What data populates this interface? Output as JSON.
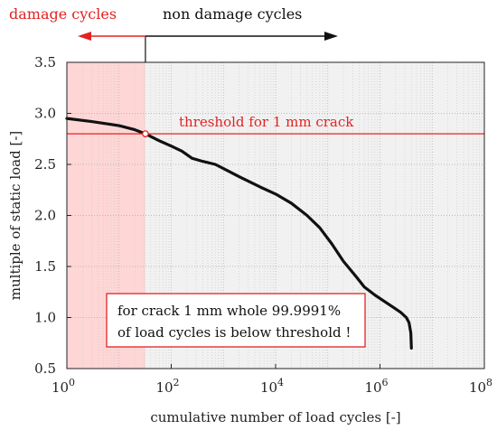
{
  "chart_data": {
    "type": "line",
    "title": "",
    "xlabel": "cumulative number of load cycles [-]",
    "ylabel": "multiple of static load [-]",
    "x_scale": "log",
    "xlim": [
      1,
      100000000
    ],
    "ylim": [
      0.5,
      3.5
    ],
    "x_ticks": [
      {
        "value": 1,
        "base": "10",
        "exp": "0"
      },
      {
        "value": 100,
        "base": "10",
        "exp": "2"
      },
      {
        "value": 10000,
        "base": "10",
        "exp": "4"
      },
      {
        "value": 1000000,
        "base": "10",
        "exp": "6"
      },
      {
        "value": 100000000,
        "base": "10",
        "exp": "8"
      }
    ],
    "y_ticks": [
      {
        "value": 0.5,
        "label": "0.5"
      },
      {
        "value": 1.0,
        "label": "1.0"
      },
      {
        "value": 1.5,
        "label": "1.5"
      },
      {
        "value": 2.0,
        "label": "2.0"
      },
      {
        "value": 2.5,
        "label": "2.5"
      },
      {
        "value": 3.0,
        "label": "3.0"
      },
      {
        "value": 3.5,
        "label": "3.5"
      }
    ],
    "grid": true,
    "series": [
      {
        "color": "#111111",
        "points": [
          [
            1,
            2.95
          ],
          [
            3,
            2.92
          ],
          [
            10,
            2.88
          ],
          [
            20,
            2.84
          ],
          [
            32,
            2.8
          ],
          [
            60,
            2.73
          ],
          [
            100,
            2.68
          ],
          [
            160,
            2.63
          ],
          [
            250,
            2.56
          ],
          [
            400,
            2.53
          ],
          [
            700,
            2.5
          ],
          [
            1000,
            2.46
          ],
          [
            2000,
            2.38
          ],
          [
            5000,
            2.28
          ],
          [
            10000,
            2.21
          ],
          [
            20000,
            2.12
          ],
          [
            40000,
            2.0
          ],
          [
            70000,
            1.88
          ],
          [
            120000,
            1.72
          ],
          [
            200000,
            1.55
          ],
          [
            350000,
            1.4
          ],
          [
            500000,
            1.3
          ],
          [
            800000,
            1.22
          ],
          [
            1200000,
            1.16
          ],
          [
            1800000,
            1.1
          ],
          [
            2500000,
            1.05
          ],
          [
            3200000,
            1.0
          ],
          [
            3600000,
            0.95
          ],
          [
            3900000,
            0.85
          ],
          [
            4000000,
            0.7
          ]
        ]
      }
    ],
    "threshold": {
      "y": 2.8,
      "label": "threshold for 1 mm crack",
      "color": "#e32222"
    },
    "intersection": {
      "x": 32,
      "y": 2.8
    },
    "damage_region": {
      "x_from": 1,
      "x_to": 32,
      "color": "#ffd6d6"
    },
    "non_damage_region": {
      "x_from": 32,
      "x_to": 100000000,
      "color": "#f1f1f1"
    },
    "top_labels": {
      "damage": "damage cycles",
      "damage_color": "#e32222",
      "non_damage": "non damage cycles",
      "non_damage_color": "#111111"
    },
    "annotation": {
      "lines": [
        "for crack 1 mm whole 99.9991%",
        "of load cycles is below threshold !"
      ],
      "border_color": "#e32222"
    }
  }
}
